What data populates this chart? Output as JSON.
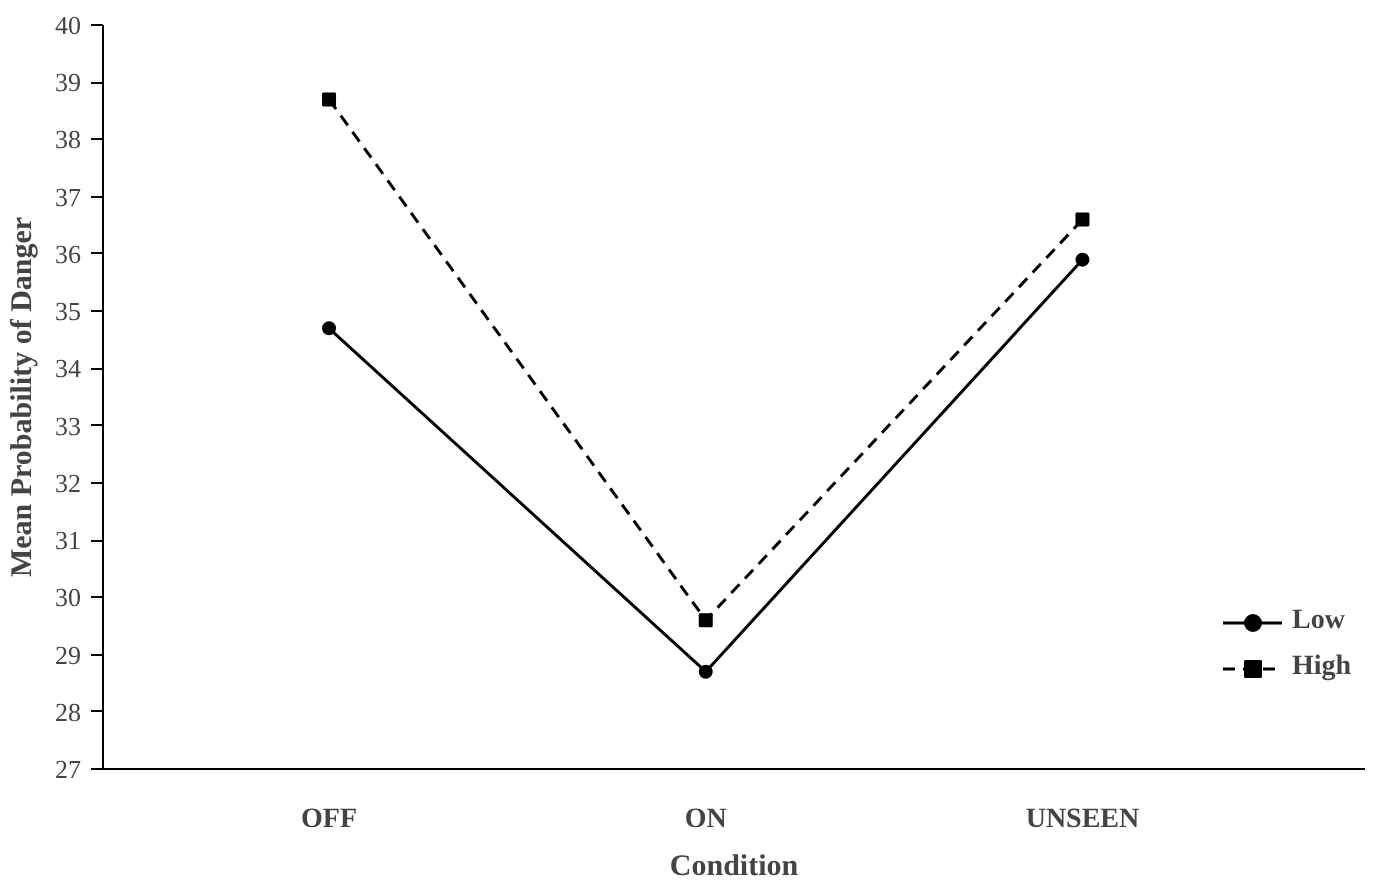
{
  "chart_data": {
    "type": "line",
    "xlabel": "Condition",
    "ylabel": "Mean Probability of Danger",
    "categories": [
      "OFF",
      "ON",
      "UNSEEN"
    ],
    "series": [
      {
        "name": "Low",
        "color": "#000000",
        "values": [
          34.7,
          28.7,
          35.9
        ],
        "marker": "circle",
        "line_style": "solid"
      },
      {
        "name": "High",
        "color": "#000000",
        "values": [
          38.7,
          29.6,
          36.6
        ],
        "marker": "square",
        "line_style": "dashed"
      }
    ],
    "ylim": [
      27,
      40
    ],
    "yticks": [
      27,
      28,
      29,
      30,
      31,
      32,
      33,
      34,
      35,
      36,
      37,
      38,
      39,
      40
    ],
    "grid": false,
    "legend": "right"
  }
}
